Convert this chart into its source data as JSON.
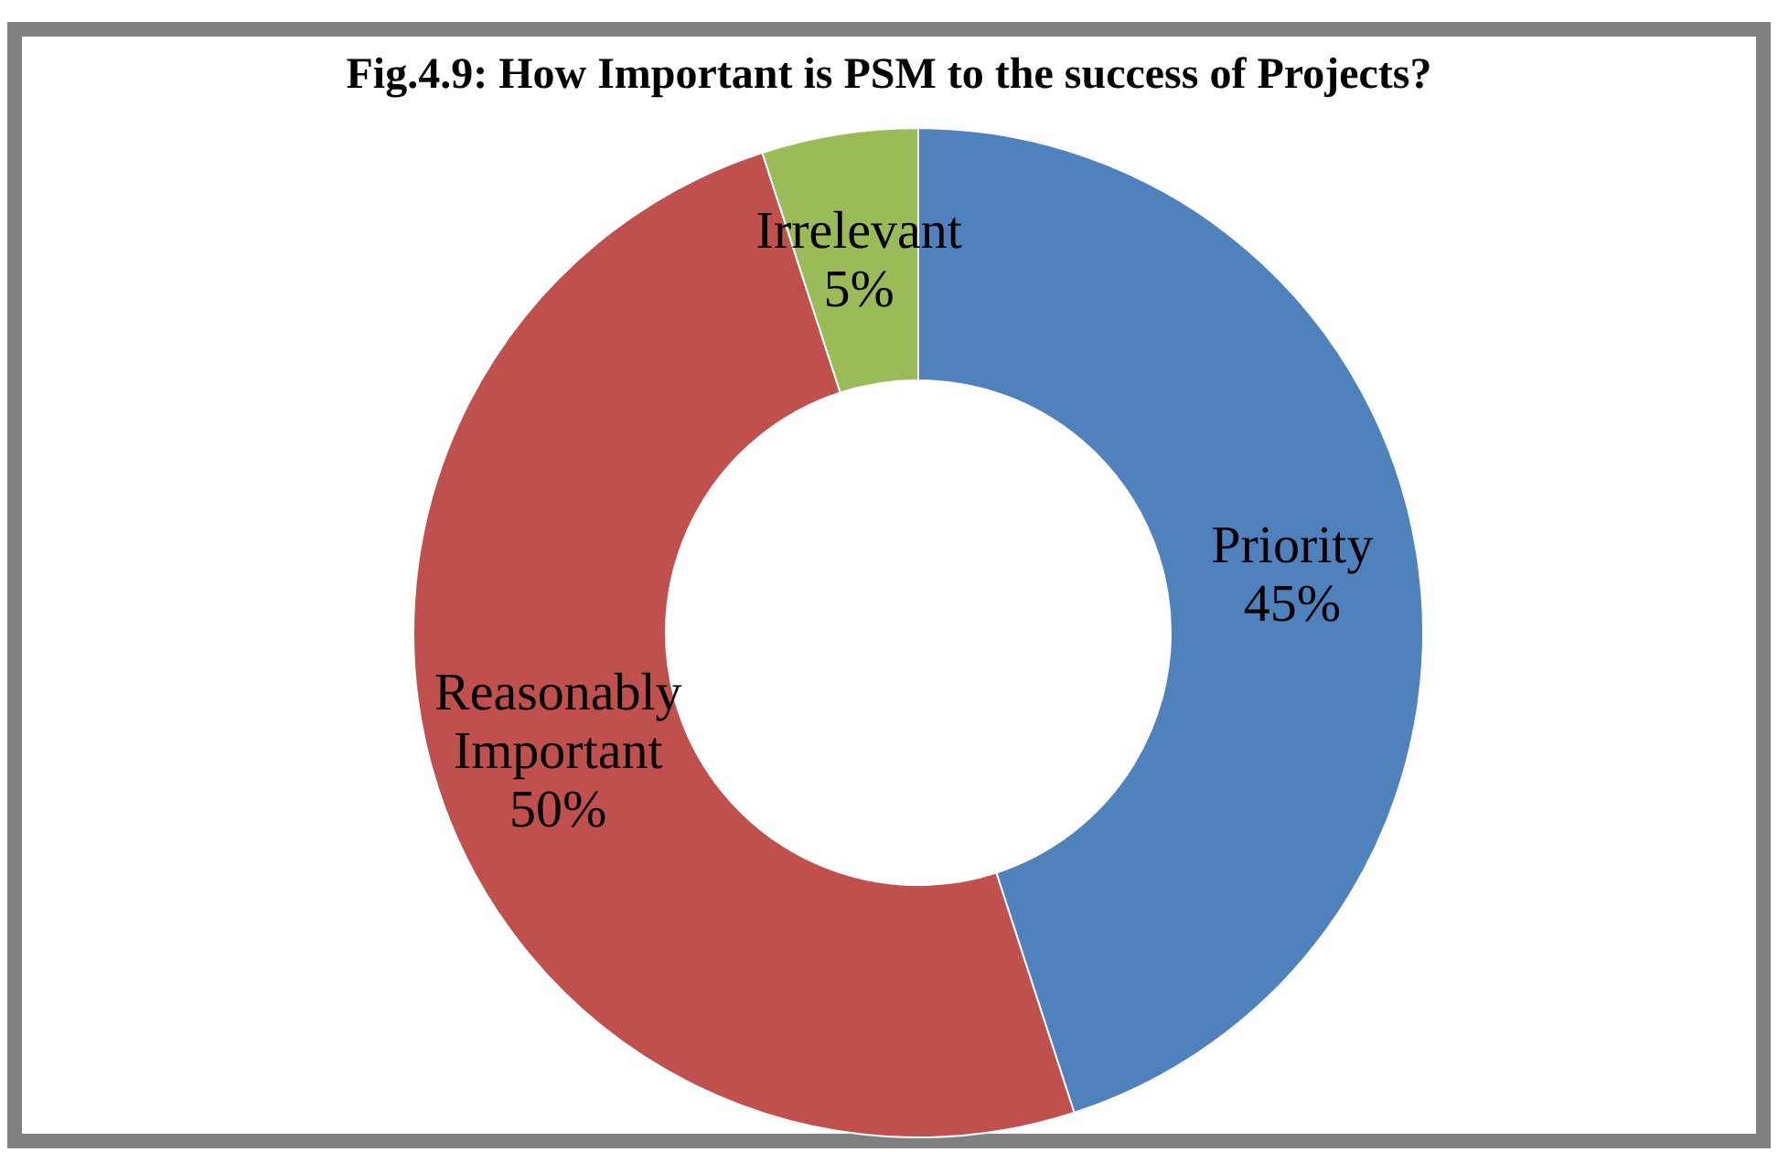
{
  "chart_data": {
    "type": "donut",
    "title": "Fig.4.9: How Important is PSM to the success of Projects?",
    "categories": [
      "Priority",
      "Reasonably Important",
      "Irrelevant"
    ],
    "values": [
      45,
      50,
      5
    ],
    "colors": [
      "#4f81bd",
      "#c0504d",
      "#9bbb59"
    ],
    "value_labels": [
      "45%",
      "50%",
      "5%"
    ],
    "legend": false
  }
}
